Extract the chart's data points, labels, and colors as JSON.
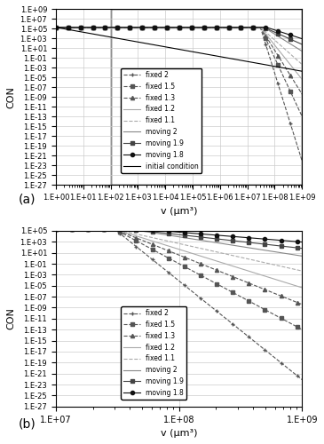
{
  "title_a": "(a)",
  "title_b": "(b)",
  "xlabel": "v (μm³)",
  "ylabel": "CON",
  "series": [
    {
      "label": "fixed 2",
      "style": "dashed",
      "marker": "+",
      "color": "#555555"
    },
    {
      "label": "fixed 1.5",
      "style": "dashed",
      "marker": "s",
      "color": "#555555"
    },
    {
      "label": "fixed 1.3",
      "style": "dashed",
      "marker": "^",
      "color": "#555555"
    },
    {
      "label": "fixed 1.2",
      "style": "solid",
      "marker": null,
      "color": "#aaaaaa"
    },
    {
      "label": "fixed 1.1",
      "style": "dashed",
      "marker": null,
      "color": "#aaaaaa"
    },
    {
      "label": "moving 2",
      "style": "solid",
      "marker": null,
      "color": "#888888"
    },
    {
      "label": "moving 1.9",
      "style": "solid",
      "marker": "s",
      "color": "#333333"
    },
    {
      "label": "moving 1.8",
      "style": "solid",
      "marker": "o",
      "color": "#111111"
    },
    {
      "label": "initial condition",
      "style": "solid",
      "marker": null,
      "color": "#000000"
    }
  ],
  "xlim_a": [
    1.0,
    1000000000.0
  ],
  "ylim_a": [
    1e-27,
    1000000000.0
  ],
  "xlim_b": [
    10000000.0,
    1000000000.0
  ],
  "ylim_b": [
    1e-27,
    100000.0
  ],
  "yticks_a": [
    -27,
    -25,
    -23,
    -21,
    -19,
    -17,
    -15,
    -13,
    -11,
    -9,
    -7,
    -5,
    -3,
    -1,
    1,
    3,
    5,
    7,
    9
  ],
  "yticks_b": [
    -27,
    -25,
    -23,
    -21,
    -19,
    -17,
    -15,
    -13,
    -11,
    -9,
    -7,
    -5,
    -3,
    -1,
    1,
    3,
    5
  ],
  "rect_x1": 100.0,
  "rect_x2": 1000000000.0,
  "rect_y1": 1e-27,
  "rect_y2": 1000000000.0
}
